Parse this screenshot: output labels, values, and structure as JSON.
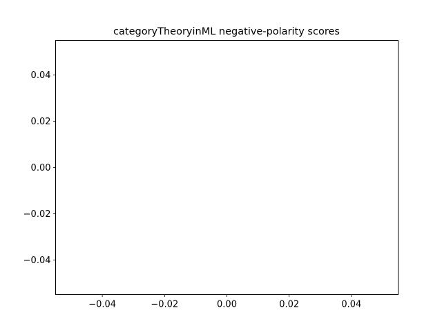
{
  "chart_data": {
    "type": "scatter",
    "title": "categoryTheoryinML negative-polarity scores",
    "xlabel": "",
    "ylabel": "",
    "x": [],
    "y": [],
    "xlim": [
      -0.055,
      0.055
    ],
    "ylim": [
      -0.055,
      0.055
    ],
    "xticks": [
      -0.04,
      -0.02,
      0.0,
      0.02,
      0.04
    ],
    "yticks": [
      -0.04,
      -0.02,
      0.0,
      0.02,
      0.04
    ],
    "xtick_labels": [
      "−0.04",
      "−0.02",
      "0.00",
      "0.02",
      "0.04"
    ],
    "ytick_labels": [
      "−0.04",
      "−0.02",
      "0.00",
      "0.02",
      "0.04"
    ],
    "grid": false,
    "legend": "none"
  }
}
